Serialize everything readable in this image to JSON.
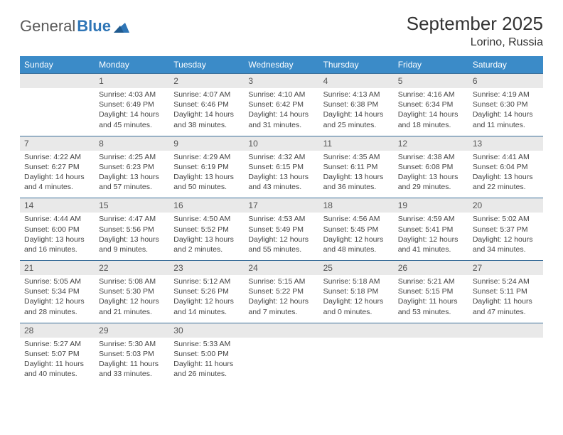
{
  "logo": {
    "text1": "General",
    "text2": "Blue"
  },
  "title": "September 2025",
  "location": "Lorino, Russia",
  "colors": {
    "header_bg": "#3b8bc8",
    "header_text": "#ffffff",
    "daynum_bg": "#e9e9e9",
    "border": "#3b6f9a",
    "text": "#444444",
    "page_bg": "#ffffff"
  },
  "weekdays": [
    "Sunday",
    "Monday",
    "Tuesday",
    "Wednesday",
    "Thursday",
    "Friday",
    "Saturday"
  ],
  "weeks": [
    [
      null,
      {
        "n": "1",
        "sr": "Sunrise: 4:03 AM",
        "ss": "Sunset: 6:49 PM",
        "d1": "Daylight: 14 hours",
        "d2": "and 45 minutes."
      },
      {
        "n": "2",
        "sr": "Sunrise: 4:07 AM",
        "ss": "Sunset: 6:46 PM",
        "d1": "Daylight: 14 hours",
        "d2": "and 38 minutes."
      },
      {
        "n": "3",
        "sr": "Sunrise: 4:10 AM",
        "ss": "Sunset: 6:42 PM",
        "d1": "Daylight: 14 hours",
        "d2": "and 31 minutes."
      },
      {
        "n": "4",
        "sr": "Sunrise: 4:13 AM",
        "ss": "Sunset: 6:38 PM",
        "d1": "Daylight: 14 hours",
        "d2": "and 25 minutes."
      },
      {
        "n": "5",
        "sr": "Sunrise: 4:16 AM",
        "ss": "Sunset: 6:34 PM",
        "d1": "Daylight: 14 hours",
        "d2": "and 18 minutes."
      },
      {
        "n": "6",
        "sr": "Sunrise: 4:19 AM",
        "ss": "Sunset: 6:30 PM",
        "d1": "Daylight: 14 hours",
        "d2": "and 11 minutes."
      }
    ],
    [
      {
        "n": "7",
        "sr": "Sunrise: 4:22 AM",
        "ss": "Sunset: 6:27 PM",
        "d1": "Daylight: 14 hours",
        "d2": "and 4 minutes."
      },
      {
        "n": "8",
        "sr": "Sunrise: 4:25 AM",
        "ss": "Sunset: 6:23 PM",
        "d1": "Daylight: 13 hours",
        "d2": "and 57 minutes."
      },
      {
        "n": "9",
        "sr": "Sunrise: 4:29 AM",
        "ss": "Sunset: 6:19 PM",
        "d1": "Daylight: 13 hours",
        "d2": "and 50 minutes."
      },
      {
        "n": "10",
        "sr": "Sunrise: 4:32 AM",
        "ss": "Sunset: 6:15 PM",
        "d1": "Daylight: 13 hours",
        "d2": "and 43 minutes."
      },
      {
        "n": "11",
        "sr": "Sunrise: 4:35 AM",
        "ss": "Sunset: 6:11 PM",
        "d1": "Daylight: 13 hours",
        "d2": "and 36 minutes."
      },
      {
        "n": "12",
        "sr": "Sunrise: 4:38 AM",
        "ss": "Sunset: 6:08 PM",
        "d1": "Daylight: 13 hours",
        "d2": "and 29 minutes."
      },
      {
        "n": "13",
        "sr": "Sunrise: 4:41 AM",
        "ss": "Sunset: 6:04 PM",
        "d1": "Daylight: 13 hours",
        "d2": "and 22 minutes."
      }
    ],
    [
      {
        "n": "14",
        "sr": "Sunrise: 4:44 AM",
        "ss": "Sunset: 6:00 PM",
        "d1": "Daylight: 13 hours",
        "d2": "and 16 minutes."
      },
      {
        "n": "15",
        "sr": "Sunrise: 4:47 AM",
        "ss": "Sunset: 5:56 PM",
        "d1": "Daylight: 13 hours",
        "d2": "and 9 minutes."
      },
      {
        "n": "16",
        "sr": "Sunrise: 4:50 AM",
        "ss": "Sunset: 5:52 PM",
        "d1": "Daylight: 13 hours",
        "d2": "and 2 minutes."
      },
      {
        "n": "17",
        "sr": "Sunrise: 4:53 AM",
        "ss": "Sunset: 5:49 PM",
        "d1": "Daylight: 12 hours",
        "d2": "and 55 minutes."
      },
      {
        "n": "18",
        "sr": "Sunrise: 4:56 AM",
        "ss": "Sunset: 5:45 PM",
        "d1": "Daylight: 12 hours",
        "d2": "and 48 minutes."
      },
      {
        "n": "19",
        "sr": "Sunrise: 4:59 AM",
        "ss": "Sunset: 5:41 PM",
        "d1": "Daylight: 12 hours",
        "d2": "and 41 minutes."
      },
      {
        "n": "20",
        "sr": "Sunrise: 5:02 AM",
        "ss": "Sunset: 5:37 PM",
        "d1": "Daylight: 12 hours",
        "d2": "and 34 minutes."
      }
    ],
    [
      {
        "n": "21",
        "sr": "Sunrise: 5:05 AM",
        "ss": "Sunset: 5:34 PM",
        "d1": "Daylight: 12 hours",
        "d2": "and 28 minutes."
      },
      {
        "n": "22",
        "sr": "Sunrise: 5:08 AM",
        "ss": "Sunset: 5:30 PM",
        "d1": "Daylight: 12 hours",
        "d2": "and 21 minutes."
      },
      {
        "n": "23",
        "sr": "Sunrise: 5:12 AM",
        "ss": "Sunset: 5:26 PM",
        "d1": "Daylight: 12 hours",
        "d2": "and 14 minutes."
      },
      {
        "n": "24",
        "sr": "Sunrise: 5:15 AM",
        "ss": "Sunset: 5:22 PM",
        "d1": "Daylight: 12 hours",
        "d2": "and 7 minutes."
      },
      {
        "n": "25",
        "sr": "Sunrise: 5:18 AM",
        "ss": "Sunset: 5:18 PM",
        "d1": "Daylight: 12 hours",
        "d2": "and 0 minutes."
      },
      {
        "n": "26",
        "sr": "Sunrise: 5:21 AM",
        "ss": "Sunset: 5:15 PM",
        "d1": "Daylight: 11 hours",
        "d2": "and 53 minutes."
      },
      {
        "n": "27",
        "sr": "Sunrise: 5:24 AM",
        "ss": "Sunset: 5:11 PM",
        "d1": "Daylight: 11 hours",
        "d2": "and 47 minutes."
      }
    ],
    [
      {
        "n": "28",
        "sr": "Sunrise: 5:27 AM",
        "ss": "Sunset: 5:07 PM",
        "d1": "Daylight: 11 hours",
        "d2": "and 40 minutes."
      },
      {
        "n": "29",
        "sr": "Sunrise: 5:30 AM",
        "ss": "Sunset: 5:03 PM",
        "d1": "Daylight: 11 hours",
        "d2": "and 33 minutes."
      },
      {
        "n": "30",
        "sr": "Sunrise: 5:33 AM",
        "ss": "Sunset: 5:00 PM",
        "d1": "Daylight: 11 hours",
        "d2": "and 26 minutes."
      },
      null,
      null,
      null,
      null
    ]
  ]
}
